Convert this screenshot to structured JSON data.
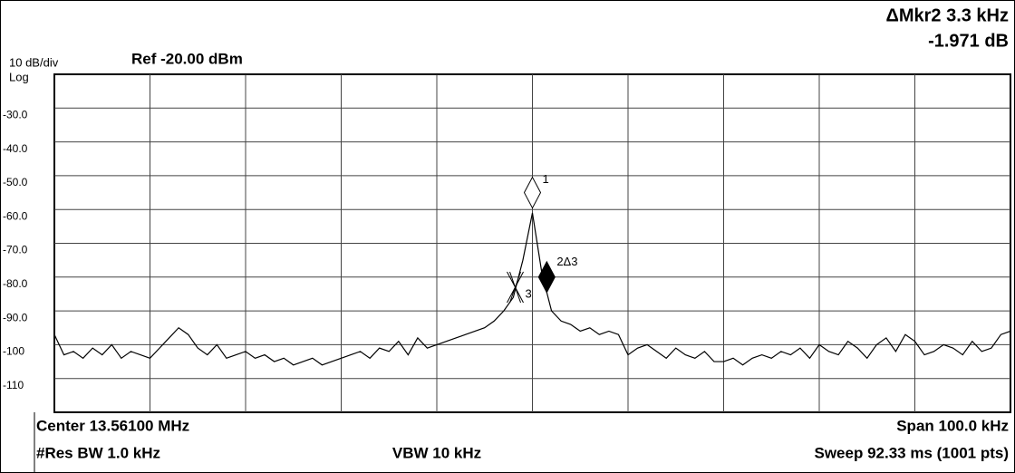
{
  "chart_data": {
    "type": "line",
    "delta_marker": "ΔMkr2 3.3 kHz",
    "delta_value": "-1.971 dB",
    "scale": "10 dB/div",
    "ref": "Ref -20.00 dBm",
    "y_scale_type": "Log",
    "center": "Center 13.56100 MHz",
    "span": "Span 100.0 kHz",
    "res_bw": "#Res BW 1.0 kHz",
    "vbw": "VBW 10 kHz",
    "sweep": "Sweep  92.33 ms (1001 pts)",
    "xlim": [
      13.511,
      13.611
    ],
    "ylim": [
      -120,
      -20
    ],
    "yticks": [
      {
        "value": -30,
        "label": "-30.0"
      },
      {
        "value": -40,
        "label": "-40.0"
      },
      {
        "value": -50,
        "label": "-50.0"
      },
      {
        "value": -60,
        "label": "-60.0"
      },
      {
        "value": -70,
        "label": "-70.0"
      },
      {
        "value": -80,
        "label": "-80.0"
      },
      {
        "value": -90,
        "label": "-90.0"
      },
      -100,
      -110
    ],
    "grid": true,
    "color": "#000000",
    "values": [
      -97,
      -103,
      -102,
      -104,
      -101,
      -103,
      -100,
      -104,
      -102,
      -103,
      -104,
      -101,
      -98,
      -95,
      -97,
      -101,
      -103,
      -100,
      -104,
      -103,
      -102,
      -104,
      -103,
      -105,
      -104,
      -106,
      -105,
      -104,
      -106,
      -105,
      -104,
      -103,
      -102,
      -104,
      -101,
      -102,
      -99,
      -103,
      -98,
      -101,
      -100,
      -99,
      -98,
      -97,
      -96,
      -95,
      -93,
      -90,
      -86,
      -75,
      -61,
      -79,
      -90,
      -93,
      -94,
      -96,
      -95,
      -97,
      -96,
      -97,
      -103,
      -101,
      -100,
      -102,
      -104,
      -101,
      -103,
      -104,
      -102,
      -105,
      -105,
      -104,
      -106,
      -104,
      -103,
      -104,
      -102,
      -103,
      -101,
      -104,
      -100,
      -102,
      -103,
      -99,
      -101,
      -104,
      -100,
      -98,
      -102,
      -97,
      -99,
      -103,
      -102,
      -100,
      -101,
      -103,
      -99,
      -102,
      -101,
      -97,
      -96
    ],
    "markers": [
      {
        "label": "1",
        "x": 13.561,
        "y": -55,
        "style": "open"
      },
      {
        "label": "2Δ3",
        "x": 13.5625,
        "y": -80,
        "style": "filled"
      },
      {
        "label": "3",
        "x": 13.5592,
        "y": -83,
        "style": "cross"
      }
    ]
  }
}
